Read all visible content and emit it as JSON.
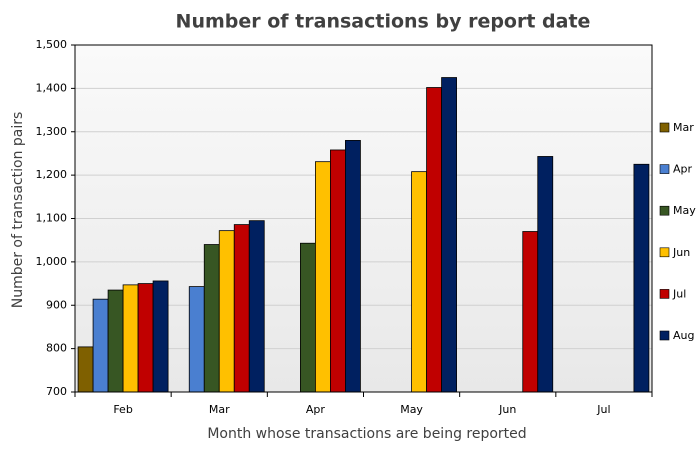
{
  "chart_data": {
    "type": "bar",
    "title": "Number of transactions by report date",
    "x_label": "Month whose transactions are being reported",
    "y_label": "Number of transaction pairs",
    "categories": [
      "Feb",
      "Mar",
      "Apr",
      "May",
      "Jun",
      "Jul"
    ],
    "series": [
      {
        "name": "Mar",
        "color": "#7f6000",
        "values": [
          804,
          null,
          null,
          null,
          null,
          null
        ]
      },
      {
        "name": "Apr",
        "color": "#4a7fd0",
        "values": [
          914,
          943,
          null,
          null,
          null,
          null
        ]
      },
      {
        "name": "May",
        "color": "#375623",
        "values": [
          935,
          1040,
          1043,
          null,
          null,
          null
        ]
      },
      {
        "name": "Jun",
        "color": "#ffc000",
        "values": [
          947,
          1072,
          1231,
          1208,
          null,
          null
        ]
      },
      {
        "name": "Jul",
        "color": "#c00000",
        "values": [
          950,
          1086,
          1258,
          1402,
          1070,
          null
        ]
      },
      {
        "name": "Aug",
        "color": "#002060",
        "values": [
          956,
          1095,
          1280,
          1425,
          1243,
          1225
        ]
      }
    ],
    "ylim": [
      700,
      1500
    ],
    "yticks": [
      700,
      800,
      900,
      {
        "value": 1000,
        "label": "1,000"
      },
      {
        "value": 1100,
        "label": "1,100"
      },
      {
        "value": 1200,
        "label": "1,200"
      },
      {
        "value": 1300,
        "label": "1,300"
      },
      {
        "value": 1400,
        "label": "1,400"
      },
      {
        "value": 1500,
        "label": "1,500"
      }
    ],
    "grid": true,
    "legend": "right"
  }
}
